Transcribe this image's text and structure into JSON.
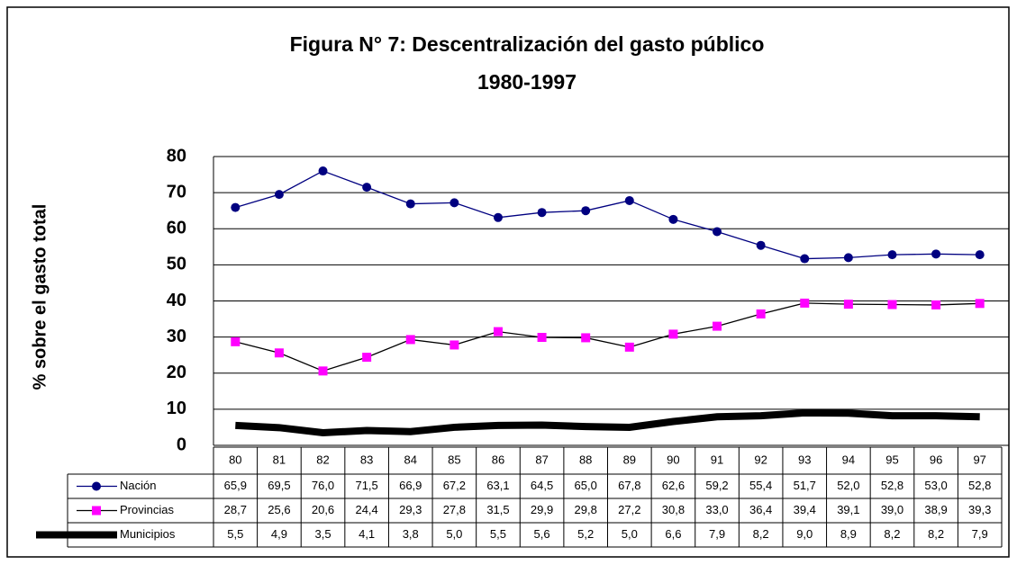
{
  "chart_data": {
    "type": "line",
    "title": "Figura N° 7: Descentralización del gasto público",
    "subtitle": "1980-1997",
    "y_label": "% sobre el gasto total",
    "categories": [
      "80",
      "81",
      "82",
      "83",
      "84",
      "85",
      "86",
      "87",
      "88",
      "89",
      "90",
      "91",
      "92",
      "93",
      "94",
      "95",
      "96",
      "97"
    ],
    "ylim": [
      0,
      80
    ],
    "yticks": [
      0,
      10,
      20,
      30,
      40,
      50,
      60,
      70,
      80
    ],
    "grid": true,
    "series": [
      {
        "name": "Nación",
        "color": "#000080",
        "marker": "circle",
        "values": [
          65.9,
          69.5,
          76.0,
          71.5,
          66.9,
          67.2,
          63.1,
          64.5,
          65.0,
          67.8,
          62.6,
          59.2,
          55.4,
          51.7,
          52.0,
          52.8,
          53.0,
          52.8
        ],
        "value_labels": [
          "65,9",
          "69,5",
          "76,0",
          "71,5",
          "66,9",
          "67,2",
          "63,1",
          "64,5",
          "65,0",
          "67,8",
          "62,6",
          "59,2",
          "55,4",
          "51,7",
          "52,0",
          "52,8",
          "53,0",
          "52,8"
        ]
      },
      {
        "name": "Provincias",
        "color": "#ff00ff",
        "marker": "square",
        "values": [
          28.7,
          25.6,
          20.6,
          24.4,
          29.3,
          27.8,
          31.5,
          29.9,
          29.8,
          27.2,
          30.8,
          33.0,
          36.4,
          39.4,
          39.1,
          39.0,
          38.9,
          39.3
        ],
        "value_labels": [
          "28,7",
          "25,6",
          "20,6",
          "24,4",
          "29,3",
          "27,8",
          "31,5",
          "29,9",
          "29,8",
          "27,2",
          "30,8",
          "33,0",
          "36,4",
          "39,4",
          "39,1",
          "39,0",
          "38,9",
          "39,3"
        ]
      },
      {
        "name": "Municipios",
        "color": "#000000",
        "marker": "none",
        "values": [
          5.5,
          4.9,
          3.5,
          4.1,
          3.8,
          5.0,
          5.5,
          5.6,
          5.2,
          5.0,
          6.6,
          7.9,
          8.2,
          9.0,
          8.9,
          8.2,
          8.2,
          7.9
        ],
        "value_labels": [
          "5,5",
          "4,9",
          "3,5",
          "4,1",
          "3,8",
          "5,0",
          "5,5",
          "5,6",
          "5,2",
          "5,0",
          "6,6",
          "7,9",
          "8,2",
          "9,0",
          "8,9",
          "8,2",
          "8,2",
          "7,9"
        ]
      }
    ]
  }
}
